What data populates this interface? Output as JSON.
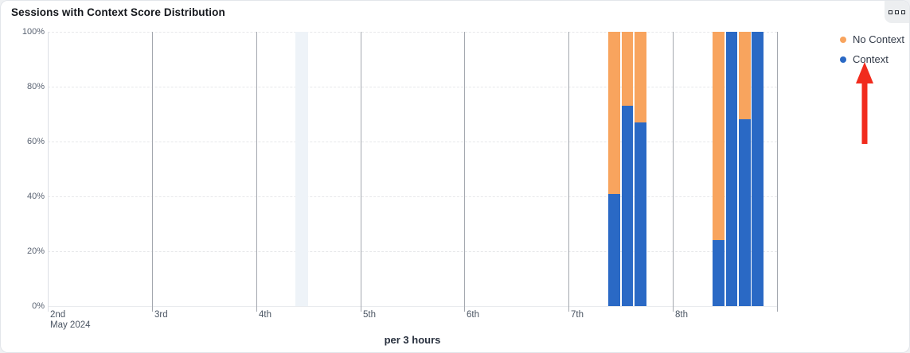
{
  "card": {
    "title": "Sessions with Context Score Distribution",
    "menu_icon": "ellipsis-squares-icon"
  },
  "chart_data": {
    "type": "bar",
    "stacking": "percent",
    "title": "Sessions with Context Score Distribution",
    "xlabel": "per 3 hours",
    "ylabel": "",
    "ylim": [
      0,
      100
    ],
    "grid": true,
    "y_tick_labels": [
      "0%",
      "20%",
      "40%",
      "60%",
      "80%",
      "100%"
    ],
    "x_axis": {
      "unit": "day",
      "tick_labels": [
        "2nd",
        "3rd",
        "4th",
        "5th",
        "6th",
        "7th",
        "8th"
      ],
      "first_tick_sublabel": "May 2024",
      "slots_per_day": 8,
      "hours_per_slot": 3
    },
    "legend": {
      "position": "top-right",
      "items": [
        {
          "label": "No Context",
          "color": "#f8a45e"
        },
        {
          "label": "Context",
          "color": "#2a69c5"
        }
      ]
    },
    "series": [
      {
        "name": "Context",
        "color": "#2a69c5",
        "values": [
          41,
          73,
          67,
          24,
          100,
          68,
          100
        ]
      },
      {
        "name": "No Context",
        "color": "#f8a45e",
        "values": [
          59,
          27,
          33,
          76,
          0,
          32,
          0
        ]
      }
    ],
    "bars": [
      {
        "day": "7th",
        "day_index": 5,
        "slot_index": 3,
        "context_pct": 41,
        "no_context_pct": 59
      },
      {
        "day": "7th",
        "day_index": 5,
        "slot_index": 4,
        "context_pct": 73,
        "no_context_pct": 27
      },
      {
        "day": "7th",
        "day_index": 5,
        "slot_index": 5,
        "context_pct": 67,
        "no_context_pct": 33
      },
      {
        "day": "8th",
        "day_index": 6,
        "slot_index": 3,
        "context_pct": 24,
        "no_context_pct": 76
      },
      {
        "day": "8th",
        "day_index": 6,
        "slot_index": 4,
        "context_pct": 100,
        "no_context_pct": 0
      },
      {
        "day": "8th",
        "day_index": 6,
        "slot_index": 5,
        "context_pct": 68,
        "no_context_pct": 32
      },
      {
        "day": "8th",
        "day_index": 6,
        "slot_index": 6,
        "context_pct": 100,
        "no_context_pct": 0
      }
    ],
    "highlight_band": {
      "day": "4th",
      "day_index": 2,
      "slot_index": 3,
      "color": "#eef3f8"
    }
  },
  "annotations": {
    "arrow": {
      "direction": "up",
      "color": "#f12b1d",
      "points_at": "Context"
    }
  }
}
